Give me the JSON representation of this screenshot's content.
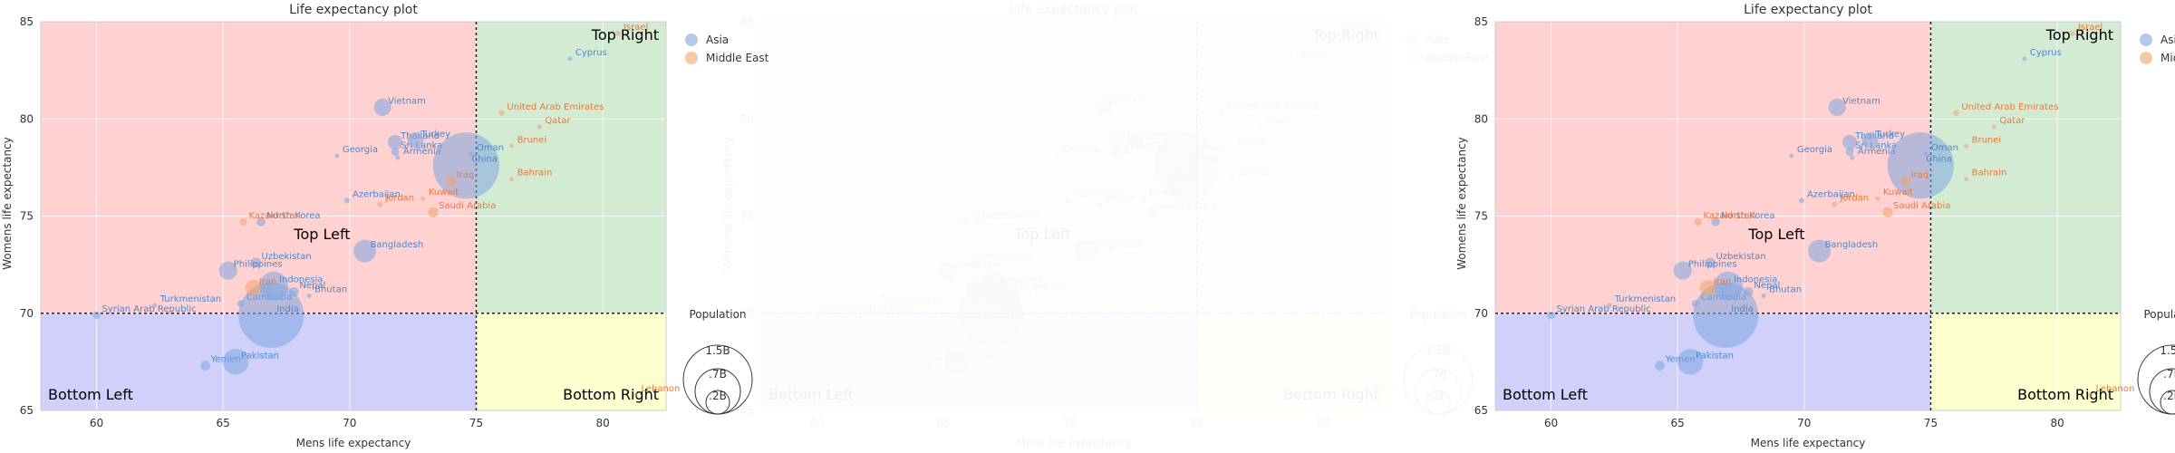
{
  "colors": {
    "asia": "#7ea6e0",
    "asia_text": "#4a88d0",
    "middle_east": "#f2a36a",
    "middle_east_text": "#e8793a",
    "top_left": "#ffd1d1",
    "top_right": "#d3ead3",
    "bottom_left": "#d0d0fb",
    "bottom_right": "#feffce",
    "divider": "#222222"
  },
  "chart_data": [
    {
      "type": "scatter",
      "title": "Life expectancy plot",
      "xlabel": "Mens life expectancy",
      "ylabel": "Womens life expectancy",
      "xlim": [
        57.8,
        82.5
      ],
      "ylim": [
        65,
        85
      ],
      "xticks": [
        60,
        65,
        70,
        75,
        80
      ],
      "yticks": [
        65,
        70,
        75,
        80,
        85
      ],
      "grid": true,
      "quadrant_threshold": {
        "x": 75,
        "y": 70
      },
      "quadrant_labels": {
        "top_left": "Top Left",
        "top_right": "Top Right",
        "bottom_left": "Bottom Left",
        "bottom_right": "Bottom Right"
      },
      "legend": {
        "position": "right",
        "entries": [
          "Asia",
          "Middle East"
        ]
      },
      "size_legend": {
        "title": "Population",
        "entries": [
          "1.5B",
          ".7B",
          ".2B"
        ]
      },
      "series": [
        {
          "name": "Asia",
          "points": [
            {
              "label": "Syrian Arab Republic",
              "x": 60.0,
              "y": 69.9,
              "pop": 0.02
            },
            {
              "label": "Turkmenistan",
              "x": 62.3,
              "y": 70.4,
              "pop": 0.006
            },
            {
              "label": "Yemen",
              "x": 64.3,
              "y": 67.3,
              "pop": 0.03
            },
            {
              "label": "Pakistan",
              "x": 65.5,
              "y": 67.5,
              "pop": 0.21
            },
            {
              "label": "Cambodia",
              "x": 65.7,
              "y": 70.5,
              "pop": 0.016
            },
            {
              "label": "Uzbekistan",
              "x": 66.3,
              "y": 72.6,
              "pop": 0.033
            },
            {
              "label": "Philippines",
              "x": 65.2,
              "y": 72.2,
              "pop": 0.106
            },
            {
              "label": "Indonesia",
              "x": 67.0,
              "y": 71.4,
              "pop": 0.264
            },
            {
              "label": "Nepal",
              "x": 67.8,
              "y": 71.1,
              "pop": 0.029
            },
            {
              "label": "India",
              "x": 66.9,
              "y": 69.9,
              "pop": 1.35
            },
            {
              "label": "Bhutan",
              "x": 68.4,
              "y": 70.9,
              "pop": 0.0008
            },
            {
              "label": "Bangladesh",
              "x": 70.6,
              "y": 73.2,
              "pop": 0.163
            },
            {
              "label": "North Korea",
              "x": 66.5,
              "y": 74.7,
              "pop": 0.025
            },
            {
              "label": "Azerbaijan",
              "x": 69.9,
              "y": 75.8,
              "pop": 0.01
            },
            {
              "label": "Georgia",
              "x": 69.5,
              "y": 78.1,
              "pop": 0.004
            },
            {
              "label": "Armenia",
              "x": 71.9,
              "y": 78.0,
              "pop": 0.003
            },
            {
              "label": "Sri Lanka",
              "x": 71.8,
              "y": 78.3,
              "pop": 0.021
            },
            {
              "label": "Thailand",
              "x": 71.8,
              "y": 78.8,
              "pop": 0.069
            },
            {
              "label": "Turkey",
              "x": 72.6,
              "y": 78.9,
              "pop": 0.082
            },
            {
              "label": "Vietnam",
              "x": 71.3,
              "y": 80.6,
              "pop": 0.096
            },
            {
              "label": "China",
              "x": 74.6,
              "y": 77.6,
              "pop": 1.39
            },
            {
              "label": "Oman",
              "x": 74.8,
              "y": 78.2,
              "pop": 0.005
            },
            {
              "label": "Cyprus",
              "x": 78.7,
              "y": 83.1,
              "pop": 0.0012
            }
          ]
        },
        {
          "name": "Middle East",
          "points": [
            {
              "label": "Israel",
              "x": 80.6,
              "y": 84.4,
              "pop": 0.009
            },
            {
              "label": "Kazakhstan",
              "x": 65.8,
              "y": 74.7,
              "pop": 0.018
            },
            {
              "label": "Iran",
              "x": 66.2,
              "y": 71.3,
              "pop": 0.082
            },
            {
              "label": "Jordan",
              "x": 71.2,
              "y": 75.6,
              "pop": 0.01
            },
            {
              "label": "Kuwait",
              "x": 72.9,
              "y": 75.9,
              "pop": 0.004
            },
            {
              "label": "Saudi Arabia",
              "x": 73.3,
              "y": 75.2,
              "pop": 0.034
            },
            {
              "label": "Iraq",
              "x": 74.0,
              "y": 76.8,
              "pop": 0.038
            },
            {
              "label": "United Arab Emirates",
              "x": 76.0,
              "y": 80.3,
              "pop": 0.0097
            },
            {
              "label": "Qatar",
              "x": 77.5,
              "y": 79.6,
              "pop": 0.0028
            },
            {
              "label": "Brunei",
              "x": 76.4,
              "y": 78.6,
              "pop": 0.0004
            },
            {
              "label": "Bahrain",
              "x": 76.4,
              "y": 76.9,
              "pop": 0.0015
            },
            {
              "label": "Lebanon",
              "x": 81.3,
              "y": 65.8,
              "pop": 0.006
            }
          ]
        }
      ]
    }
  ]
}
